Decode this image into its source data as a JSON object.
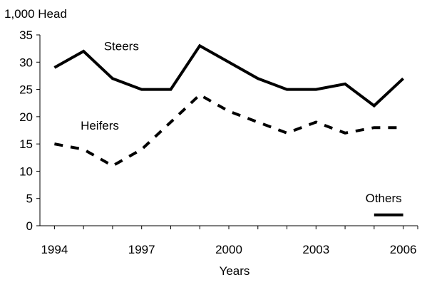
{
  "chart_data": {
    "type": "line",
    "title": "",
    "ylabel": "1,000 Head",
    "xlabel": "Years",
    "x": [
      1994,
      1995,
      1996,
      1997,
      1998,
      1999,
      2000,
      2001,
      2002,
      2003,
      2004,
      2005,
      2006
    ],
    "x_tick_labels": [
      "1994",
      "1997",
      "2000",
      "2003",
      "2006"
    ],
    "x_tick_values": [
      1994,
      1997,
      2000,
      2003,
      2006
    ],
    "ylim": [
      0,
      35
    ],
    "y_tick_labels": [
      "0",
      "5",
      "10",
      "15",
      "20",
      "25",
      "30",
      "35"
    ],
    "y_tick_values": [
      0,
      5,
      10,
      15,
      20,
      25,
      30,
      35
    ],
    "grid": false,
    "legend": "none",
    "series": [
      {
        "name": "Steers",
        "style": "solid",
        "color": "#000000",
        "x": [
          1994,
          1995,
          1996,
          1997,
          1998,
          1999,
          2000,
          2001,
          2002,
          2003,
          2004,
          2005,
          2006
        ],
        "values": [
          29,
          32,
          27,
          25,
          25,
          33,
          30,
          27,
          25,
          25,
          26,
          22,
          27
        ]
      },
      {
        "name": "Heifers",
        "style": "dashed",
        "color": "#000000",
        "x": [
          1994,
          1995,
          1996,
          1997,
          1998,
          1999,
          2000,
          2001,
          2002,
          2003,
          2004,
          2005,
          2006
        ],
        "values": [
          15,
          14,
          11,
          14,
          19,
          24,
          21,
          19,
          17,
          19,
          17,
          18,
          18
        ]
      },
      {
        "name": "Others",
        "style": "solid",
        "color": "#000000",
        "x": [
          2005,
          2006
        ],
        "values": [
          2,
          2
        ]
      }
    ]
  }
}
